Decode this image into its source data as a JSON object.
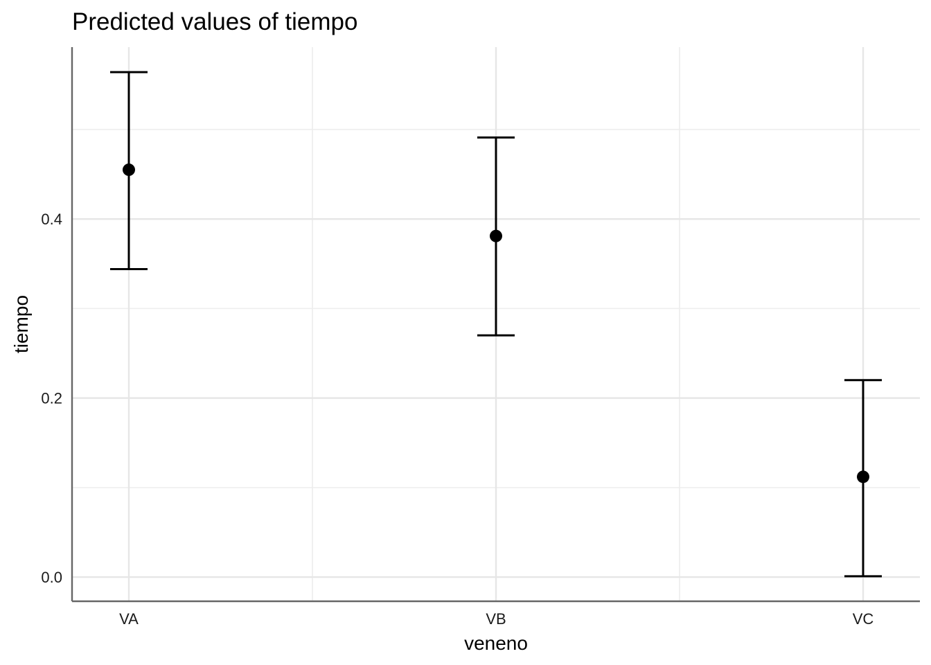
{
  "chart_data": {
    "type": "scatter",
    "title": "Predicted values of tiempo",
    "xlabel": "veneno",
    "ylabel": "tiempo",
    "categories": [
      "VA",
      "VB",
      "VC"
    ],
    "series": [
      {
        "values": [
          0.455,
          0.381,
          0.112
        ],
        "lower": [
          0.344,
          0.27,
          0.001
        ],
        "upper": [
          0.564,
          0.491,
          0.22
        ]
      }
    ],
    "ylim": [
      -0.027,
      0.592
    ],
    "yticks": [
      0.0,
      0.2,
      0.4
    ],
    "ytick_labels": [
      "0.0",
      "0.2",
      "0.4"
    ],
    "yminor": [
      0.1,
      0.3,
      0.5
    ],
    "grid": true,
    "point_color": "#000000"
  }
}
